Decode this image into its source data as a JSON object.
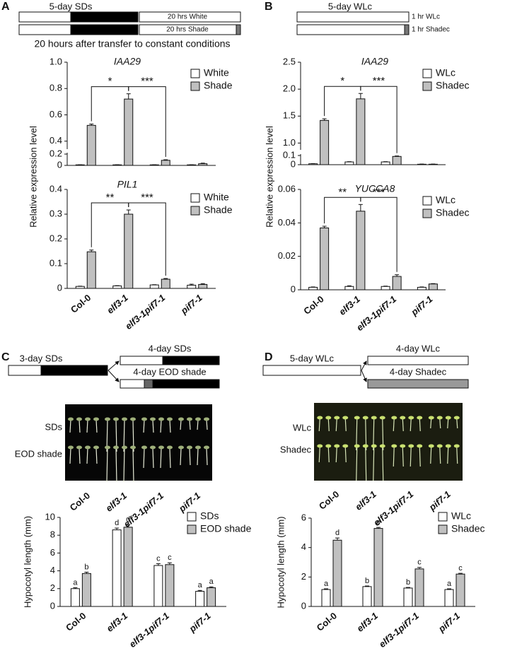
{
  "panels": [
    {
      "label": "A",
      "diagram": {
        "title": "5-day SDs",
        "rows": [
          "20 hrs White",
          "20 hrs Shade"
        ]
      },
      "note": "20 hours after transfer to constant conditions",
      "ylabel": "Relative  expression level"
    },
    {
      "label": "B",
      "diagram": {
        "title": "5-day WLc",
        "rows": [
          "1 hr WLc",
          "1 hr Shadec"
        ]
      },
      "ylabel": "Relative expression level"
    },
    {
      "label": "C",
      "diagram": {
        "title": "3-day SDs",
        "rows": [
          "4-day SDs",
          "4-day EOD shade"
        ]
      },
      "photo": {
        "rows": [
          "SDs",
          "EOD shade"
        ],
        "columns": [
          "Col-0",
          "elf3-1",
          "elf3-1pif7-1",
          "pif7-1"
        ]
      }
    },
    {
      "label": "D",
      "diagram": {
        "title": "5-day WLc",
        "rows": [
          "4-day WLc",
          "4-day Shadec"
        ]
      },
      "photo": {
        "rows": [
          "WLc",
          "Shadec"
        ],
        "columns": [
          "Col-0",
          "elf3-1",
          "elf3-1pif7-1",
          "pif7-1"
        ]
      }
    }
  ],
  "chart_data": [
    {
      "type": "bar",
      "title": "IAA29",
      "ylim": [
        0,
        1
      ],
      "ybreak": [
        0.2,
        0.35
      ],
      "yticks": [
        0,
        0.2,
        0.4,
        0.6,
        0.8,
        {
          "value": 1,
          "label": "1.0"
        }
      ],
      "series": [
        {
          "name": "White",
          "color": "#ffffff",
          "values": [
            0.01,
            0.01,
            0.01,
            0.01
          ],
          "errors": [
            0.002,
            0.002,
            0.002,
            0.002
          ]
        },
        {
          "name": "Shade",
          "color": "#c0c0c0",
          "values": [
            0.52,
            0.72,
            0.09,
            0.03
          ],
          "errors": [
            0.01,
            0.04,
            0.01,
            0.01
          ]
        }
      ],
      "annotations": [
        {
          "text": "*",
          "from": 0,
          "to": 1
        },
        {
          "text": "***",
          "from": 1,
          "to": 2
        }
      ]
    },
    {
      "type": "bar",
      "title": "PIL1",
      "ylim": [
        0,
        0.4
      ],
      "yticks": [
        0,
        0.1,
        0.2,
        0.3,
        0.4
      ],
      "categories": [
        "Col-0",
        "elf3-1",
        "elf3-1pif7-1",
        "pif7-1"
      ],
      "series": [
        {
          "name": "White",
          "color": "#ffffff",
          "values": [
            0.008,
            0.01,
            0.014,
            0.013
          ],
          "errors": [
            0.001,
            0.001,
            0.001,
            0.004
          ]
        },
        {
          "name": "Shade",
          "color": "#c0c0c0",
          "values": [
            0.148,
            0.3,
            0.037,
            0.016
          ],
          "errors": [
            0.007,
            0.017,
            0.003,
            0.003
          ]
        }
      ],
      "annotations": [
        {
          "text": "**",
          "from": 0,
          "to": 1
        },
        {
          "text": "***",
          "from": 1,
          "to": 2
        }
      ]
    },
    {
      "type": "bar",
      "title": "IAA29",
      "ylim": [
        0,
        2.5
      ],
      "ybreak": [
        0.1,
        0.9
      ],
      "yticks": [
        0,
        0.1,
        {
          "value": 1,
          "label": "1.0"
        },
        1.5,
        {
          "value": 2,
          "label": "2.0"
        },
        2.5
      ],
      "series": [
        {
          "name": "WLc",
          "color": "#ffffff",
          "values": [
            0.01,
            0.03,
            0.03,
            0.005
          ],
          "errors": [
            0.002,
            0.003,
            0.003,
            0.002
          ]
        },
        {
          "name": "Shadec",
          "color": "#c0c0c0",
          "values": [
            1.42,
            1.82,
            0.09,
            0.005
          ],
          "errors": [
            0.03,
            0.1,
            0.005,
            0.002
          ]
        }
      ],
      "annotations": [
        {
          "text": "*",
          "from": 0,
          "to": 1
        },
        {
          "text": "***",
          "from": 1,
          "to": 2
        }
      ]
    },
    {
      "type": "bar",
      "title": "YUCCA8",
      "ylim": [
        0,
        0.06
      ],
      "yticks": [
        0,
        0.02,
        0.04,
        0.06
      ],
      "categories": [
        "Col-0",
        "elf3-1",
        "elf3-1pif7-1",
        "pif7-1"
      ],
      "series": [
        {
          "name": "WLc",
          "color": "#ffffff",
          "values": [
            0.0015,
            0.002,
            0.002,
            0.0015
          ],
          "errors": [
            0.0002,
            0.0004,
            0.0002,
            0.0002
          ]
        },
        {
          "name": "Shadec",
          "color": "#c0c0c0",
          "values": [
            0.037,
            0.047,
            0.008,
            0.0035
          ],
          "errors": [
            0.001,
            0.004,
            0.001,
            0.0002
          ]
        }
      ],
      "annotations": [
        {
          "text": "**",
          "from": 0,
          "to": 1
        },
        {
          "text": "***",
          "from": 1,
          "to": 2
        }
      ]
    },
    {
      "type": "bar",
      "ylabel": "Hypocotyl length (mm)",
      "ylim": [
        0,
        10
      ],
      "yticks": [
        0,
        2,
        4,
        6,
        8,
        10
      ],
      "categories": [
        "Col-0",
        "elf3-1",
        "elf3-1pif7-1",
        "pif7-1"
      ],
      "series": [
        {
          "name": "SDs",
          "color": "#ffffff",
          "values": [
            2.0,
            8.6,
            4.6,
            1.7
          ],
          "errors": [
            0.1,
            0.2,
            0.2,
            0.1
          ],
          "letters": [
            "a",
            "d",
            "c",
            "a"
          ]
        },
        {
          "name": "EOD shade",
          "color": "#c0c0c0",
          "values": [
            3.7,
            8.9,
            4.7,
            2.1
          ],
          "errors": [
            0.15,
            0.3,
            0.2,
            0.1
          ],
          "letters": [
            "b",
            "d",
            "c",
            "a"
          ]
        }
      ]
    },
    {
      "type": "bar",
      "ylabel": "Hypocotyl length (mm)",
      "ylim": [
        0,
        6
      ],
      "yticks": [
        0,
        2,
        4,
        6
      ],
      "categories": [
        "Col-0",
        "elf3-1",
        "elf3-1pif7-1",
        "pif7-1"
      ],
      "series": [
        {
          "name": "WLc",
          "color": "#ffffff",
          "values": [
            1.15,
            1.35,
            1.25,
            1.15
          ],
          "errors": [
            0.05,
            0.04,
            0.04,
            0.05
          ],
          "letters": [
            "a",
            "b",
            "b",
            "a"
          ]
        },
        {
          "name": "Shadec",
          "color": "#c0c0c0",
          "values": [
            4.5,
            5.3,
            2.55,
            2.2
          ],
          "errors": [
            0.15,
            0.07,
            0.1,
            0.05
          ],
          "letters": [
            "d",
            "e",
            "c",
            "c"
          ]
        }
      ]
    }
  ]
}
